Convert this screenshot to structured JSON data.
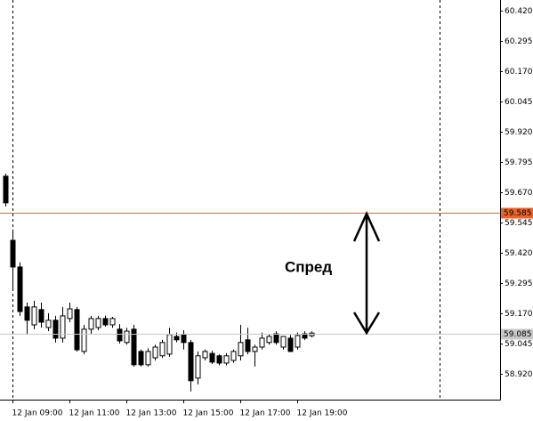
{
  "chart_data": {
    "type": "candlestick",
    "annotation": "Спред",
    "bull_color": "#ffffff",
    "bear_color": "#000000",
    "categories": [
      null,
      "12 Jan 09:00",
      null,
      null,
      null,
      null,
      null,
      null,
      null,
      "12 Jan 11:00",
      null,
      null,
      null,
      null,
      null,
      null,
      null,
      "12 Jan 13:00",
      null,
      null,
      null,
      null,
      null,
      null,
      null,
      "12 Jan 15:00",
      null,
      null,
      null,
      null,
      null,
      null,
      null,
      "12 Jan 17:00",
      null,
      null,
      null,
      null,
      null,
      null,
      null,
      "12 Jan 19:00",
      null,
      null
    ],
    "open": [
      59.736,
      59.471,
      59.361,
      59.196,
      59.122,
      59.185,
      59.111,
      59.141,
      59.067,
      59.148,
      59.185,
      59.012,
      59.104,
      59.111,
      59.148,
      59.122,
      59.104,
      59.049,
      59.104,
      59.012,
      58.957,
      58.986,
      58.994,
      59.001,
      59.074,
      59.082,
      59.049,
      58.902,
      58.986,
      59.004,
      58.994,
      58.964,
      58.975,
      58.994,
      59.06,
      59.012,
      59.03,
      59.049,
      59.085,
      59.03,
      59.067,
      59.03,
      59.085,
      59.077
    ],
    "high": [
      59.747,
      59.516,
      59.38,
      59.214,
      59.221,
      59.214,
      59.17,
      59.159,
      59.196,
      59.214,
      59.196,
      59.122,
      59.159,
      59.159,
      59.16,
      59.155,
      59.125,
      59.11,
      59.122,
      59.02,
      59.025,
      59.04,
      59.06,
      59.11,
      59.09,
      59.1,
      59.06,
      59.012,
      59.02,
      59.015,
      59.0,
      59.005,
      59.02,
      59.122,
      59.11,
      59.04,
      59.09,
      59.085,
      59.095,
      59.07,
      59.08,
      59.09,
      59.095,
      59.095
    ],
    "low": [
      59.611,
      59.269,
      59.159,
      59.085,
      59.104,
      59.111,
      59.096,
      59.049,
      59.049,
      59.133,
      59.012,
      59.001,
      59.082,
      59.1,
      59.115,
      59.11,
      59.045,
      59.04,
      58.949,
      58.95,
      58.95,
      58.975,
      58.985,
      58.99,
      59.05,
      59.02,
      58.847,
      58.876,
      58.975,
      58.96,
      58.955,
      58.955,
      58.965,
      58.975,
      59.0,
      58.95,
      59.02,
      59.04,
      59.04,
      59.02,
      59.01,
      59.02,
      59.06,
      59.07
    ],
    "close": [
      59.626,
      59.361,
      59.177,
      59.141,
      59.196,
      59.133,
      59.141,
      59.067,
      59.159,
      59.188,
      59.019,
      59.104,
      59.148,
      59.148,
      59.122,
      59.148,
      59.056,
      59.096,
      58.957,
      58.957,
      59.012,
      59.03,
      59.049,
      59.082,
      59.06,
      59.049,
      58.891,
      58.994,
      59.012,
      58.968,
      58.964,
      58.994,
      59.012,
      59.049,
      59.012,
      59.03,
      59.067,
      59.074,
      59.049,
      59.074,
      59.012,
      59.078,
      59.067,
      59.088
    ],
    "price_lines": [
      {
        "value": 59.585,
        "color": "#e8642c",
        "text_color": "#ffffff"
      },
      {
        "value": 59.085,
        "color": "#c8c8c8",
        "text_color": "#000000"
      }
    ],
    "ylim": [
      58.813,
      60.464
    ],
    "yticks": [
      {
        "value": 60.42,
        "label": "60.420"
      },
      60.295,
      {
        "value": 60.17,
        "label": "60.170"
      },
      60.045,
      {
        "value": 59.92,
        "label": "59.920"
      },
      59.795,
      {
        "value": 59.67,
        "label": "59.670"
      },
      59.545,
      {
        "value": 59.42,
        "label": "59.420"
      },
      59.295,
      {
        "value": 59.17,
        "label": "59.170"
      },
      59.045,
      {
        "value": 58.92,
        "label": "58.920"
      }
    ]
  }
}
